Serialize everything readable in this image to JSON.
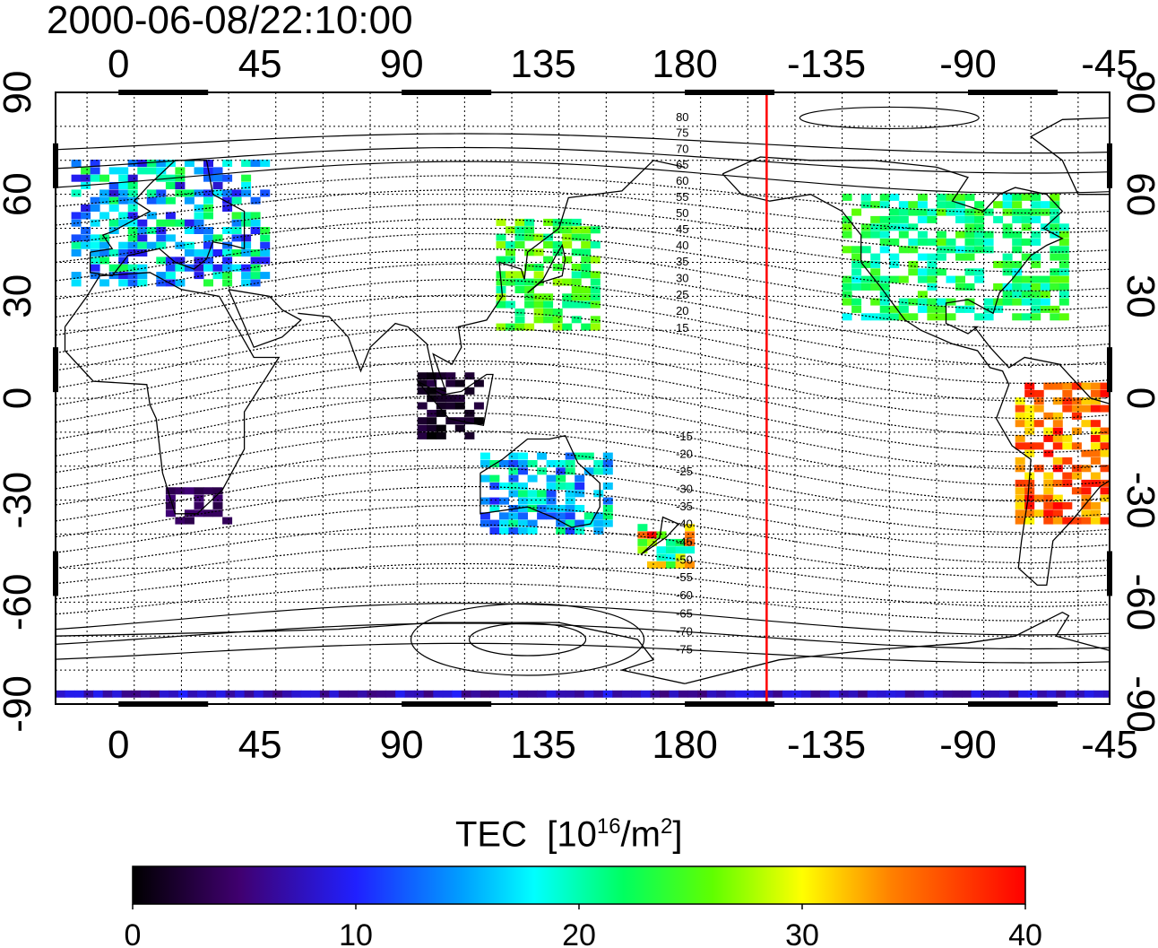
{
  "title": "2000-06-08/22:10:00",
  "colorbar": {
    "label": "TEC",
    "unit_prefix": "[10",
    "unit_exp": "16",
    "unit_mid": "/m",
    "unit_exp2": "2",
    "unit_suffix": "]",
    "min": 0,
    "max": 40,
    "ticks": [
      "0",
      "10",
      "20",
      "30",
      "40"
    ]
  },
  "axes": {
    "lon_ticks": [
      "0",
      "45",
      "90",
      "135",
      "180",
      "-135",
      "-90",
      "-45"
    ],
    "lat_ticks": [
      "90",
      "60",
      "30",
      "0",
      "-30",
      "-60",
      "-90"
    ],
    "lon_range": [
      -20,
      315
    ],
    "lat_range": [
      -90,
      90
    ]
  },
  "magnetic_latitude_labels": [
    "80",
    "75",
    "70",
    "65",
    "60",
    "55",
    "50",
    "45",
    "40",
    "35",
    "30",
    "25",
    "20",
    "15",
    "-15",
    "-20",
    "-25",
    "-30",
    "-35",
    "-40",
    "-45",
    "-50",
    "-55",
    "-60",
    "-65",
    "-70",
    "-75"
  ],
  "marker_longitude": -154,
  "colors": {
    "marker": "#ff0000",
    "coast": "#000000",
    "grid": "#000000"
  },
  "tec_regions": [
    {
      "name": "europe",
      "lon": [
        -15,
        45
      ],
      "lat": [
        35,
        72
      ],
      "tec": [
        8,
        24
      ]
    },
    {
      "name": "east-asia",
      "lon": [
        120,
        150
      ],
      "lat": [
        22,
        55
      ],
      "tec": [
        20,
        28
      ]
    },
    {
      "name": "north-america",
      "lon": [
        -130,
        -60
      ],
      "lat": [
        25,
        62
      ],
      "tec": [
        18,
        26
      ]
    },
    {
      "name": "south-america",
      "lon": [
        -75,
        -40
      ],
      "lat": [
        -35,
        5
      ],
      "tec": [
        30,
        40
      ]
    },
    {
      "name": "southern-africa",
      "lon": [
        15,
        35
      ],
      "lat": [
        -35,
        -25
      ],
      "tec": [
        3,
        5
      ]
    },
    {
      "name": "indonesia",
      "lon": [
        95,
        115
      ],
      "lat": [
        -10,
        8
      ],
      "tec": [
        0,
        3
      ]
    },
    {
      "name": "australia",
      "lon": [
        115,
        155
      ],
      "lat": [
        -38,
        -15
      ],
      "tec": [
        10,
        22
      ]
    },
    {
      "name": "new-zealand",
      "lon": [
        165,
        180
      ],
      "lat": [
        -48,
        -35
      ],
      "tec": [
        15,
        40
      ]
    },
    {
      "name": "antarctica",
      "lon": [
        -20,
        315
      ],
      "lat": [
        -90,
        -86
      ],
      "tec": [
        5,
        10
      ]
    }
  ]
}
